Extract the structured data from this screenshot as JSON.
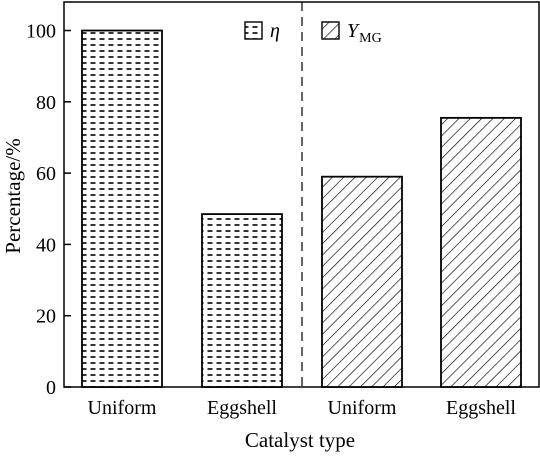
{
  "chart_data": {
    "type": "bar",
    "xlabel": "Catalyst type",
    "ylabel": "Percentage/%",
    "ylim": [
      0,
      108
    ],
    "yticks": [
      0,
      20,
      40,
      60,
      80,
      100
    ],
    "grid": false,
    "legend_placement": "top",
    "groups": [
      {
        "series": "η",
        "pattern": "dashes",
        "categories": [
          "Uniform",
          "Eggshell"
        ],
        "values": [
          100,
          48.5
        ]
      },
      {
        "series": "Y",
        "series_subscript": "MG",
        "pattern": "diagonal-hatch",
        "categories": [
          "Uniform",
          "Eggshell"
        ],
        "values": [
          59,
          75.5
        ]
      }
    ],
    "separator": "dashed vertical line between groups"
  }
}
